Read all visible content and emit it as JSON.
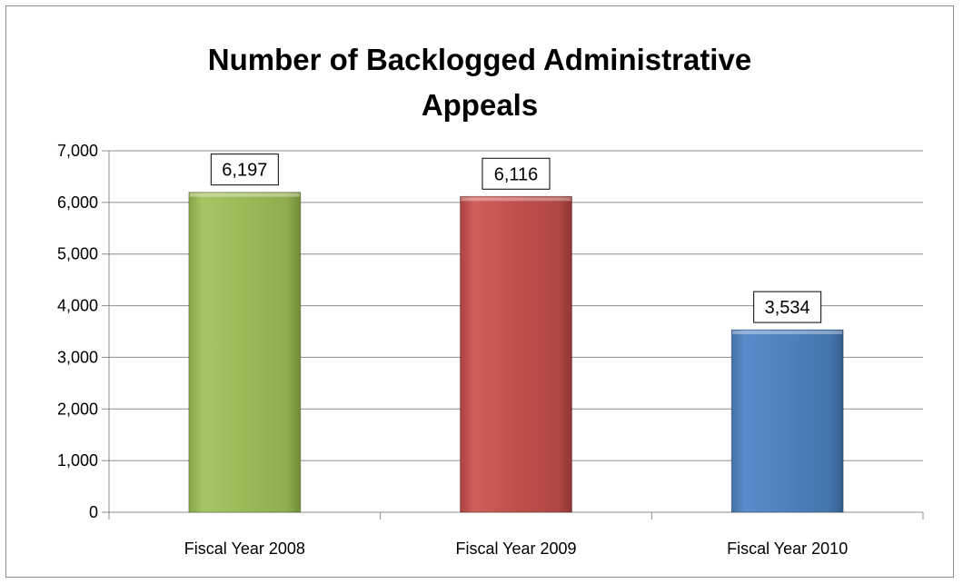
{
  "chart_data": {
    "type": "bar",
    "title": "Number of Backlogged Administrative Appeals",
    "title_lines": [
      "Number of Backlogged Administrative",
      "Appeals"
    ],
    "categories": [
      "Fiscal Year 2008",
      "Fiscal Year 2009",
      "Fiscal Year 2010"
    ],
    "values": [
      6197,
      6116,
      3534
    ],
    "data_labels": [
      "6,197",
      "6,116",
      "3,534"
    ],
    "bar_colors": [
      "#9BBB59",
      "#C0504D",
      "#4F81BD"
    ],
    "ylim": [
      0,
      7000
    ],
    "y_ticks": [
      0,
      1000,
      2000,
      3000,
      4000,
      5000,
      6000,
      7000
    ],
    "y_tick_labels": [
      "0",
      "1,000",
      "2,000",
      "3,000",
      "4,000",
      "5,000",
      "6,000",
      "7,000"
    ],
    "xlabel": "",
    "ylabel": "",
    "grid": true,
    "legend": "none"
  }
}
